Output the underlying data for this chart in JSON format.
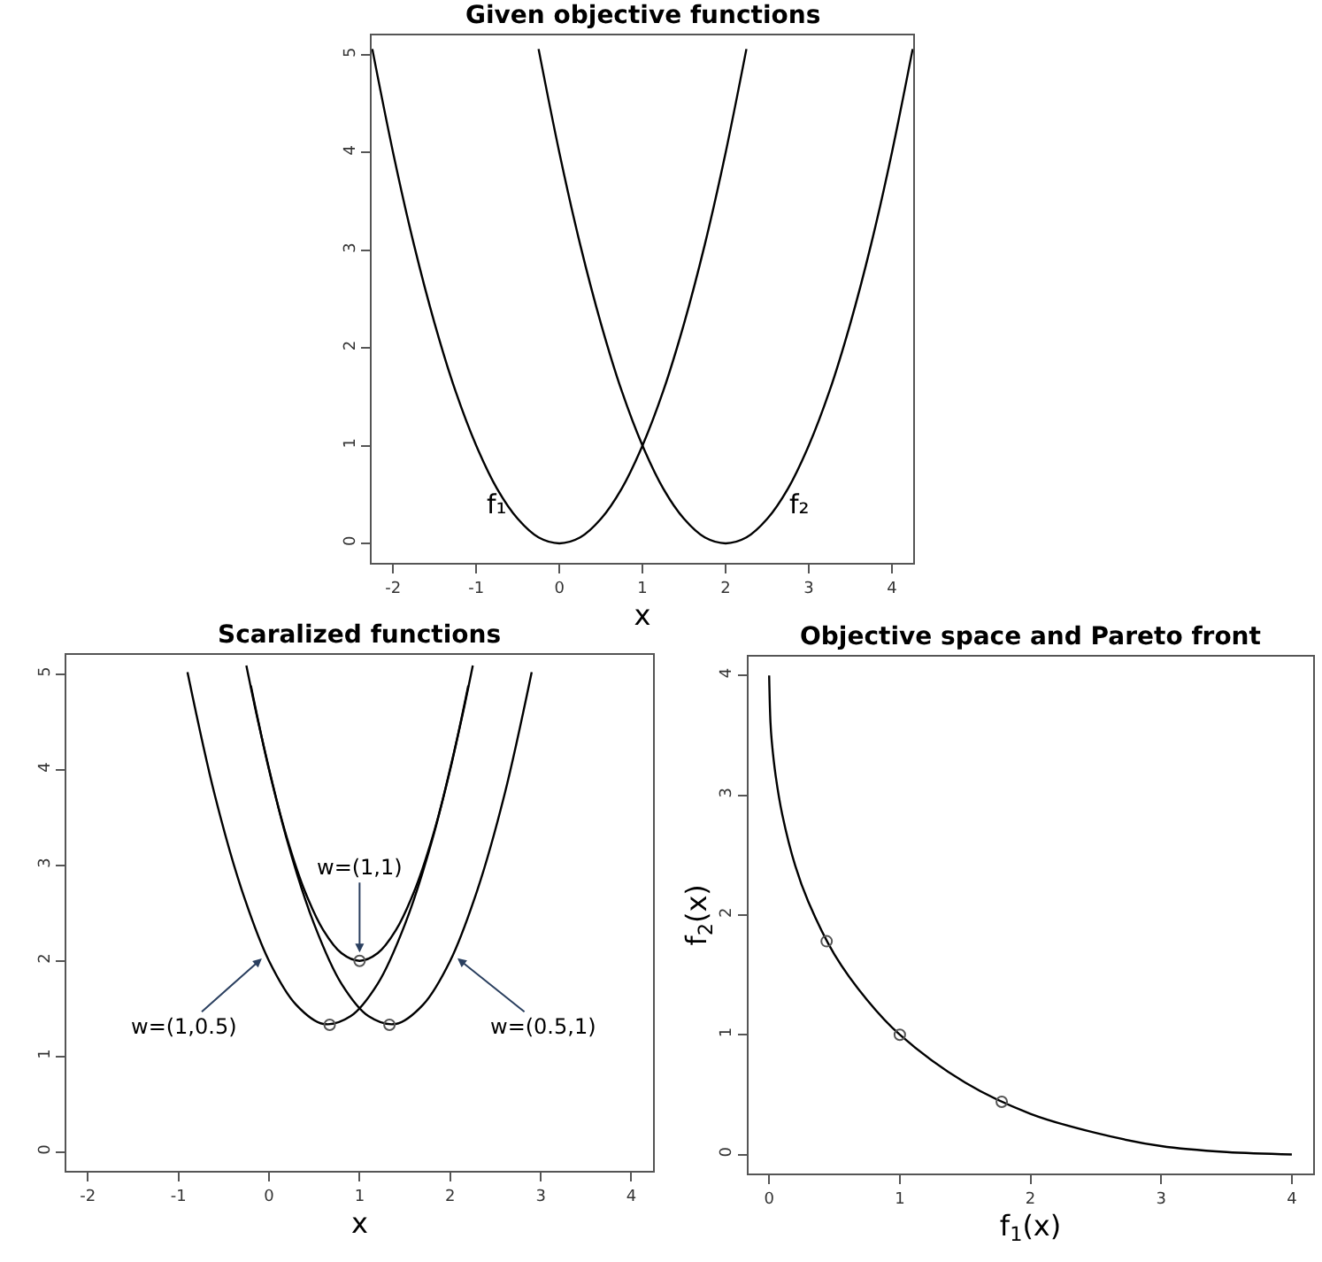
{
  "chart_data": [
    {
      "type": "line",
      "title": "Given objective functions",
      "xlabel": "x",
      "xlim": [
        -2.26,
        4.26
      ],
      "ylim": [
        -0.2,
        5.2
      ],
      "xticks": [
        -2,
        -1,
        0,
        1,
        2,
        3,
        4
      ],
      "yticks": [
        0,
        1,
        2,
        3,
        4,
        5
      ],
      "marker": "none",
      "series": [
        {
          "color": "#000000",
          "x": [
            -2.25,
            -2,
            -1.75,
            -1.5,
            -1.25,
            -1,
            -0.75,
            -0.5,
            -0.25,
            0,
            0.25,
            0.5,
            0.75,
            1,
            1.25,
            1.5,
            1.75,
            2,
            2.25
          ],
          "values": [
            5.06,
            4,
            3.06,
            2.25,
            1.56,
            1,
            0.56,
            0.25,
            0.06,
            0,
            0.06,
            0.25,
            0.56,
            1,
            1.56,
            2.25,
            3.06,
            4,
            5.06
          ]
        },
        {
          "color": "#000000",
          "x": [
            -0.25,
            0,
            0.25,
            0.5,
            0.75,
            1,
            1.25,
            1.5,
            1.75,
            2,
            2.25,
            2.5,
            2.75,
            3,
            3.25,
            3.5,
            3.75,
            4,
            4.25
          ],
          "values": [
            5.06,
            4,
            3.06,
            2.25,
            1.56,
            1,
            0.56,
            0.25,
            0.06,
            0,
            0.06,
            0.25,
            0.56,
            1,
            1.56,
            2.25,
            3.06,
            4,
            5.06
          ]
        }
      ],
      "annotations": [
        "f₁",
        "f₂"
      ]
    },
    {
      "type": "line",
      "title": "Scaralized functions",
      "xlabel": "x",
      "xlim": [
        -2.24,
        4.24
      ],
      "ylim": [
        -0.2,
        5.2
      ],
      "xticks": [
        -2,
        -1,
        0,
        1,
        2,
        3,
        4
      ],
      "yticks": [
        0,
        1,
        2,
        3,
        4,
        5
      ],
      "marker": "none",
      "series": [
        {
          "color": "#000000",
          "x": [
            -0.2,
            0,
            0.2,
            0.4,
            0.6,
            0.8,
            1,
            1.2,
            1.4,
            1.6,
            1.8,
            2,
            2.2
          ],
          "values": [
            4.88,
            4,
            3.28,
            2.72,
            2.32,
            2.08,
            2,
            2.08,
            2.32,
            2.72,
            3.28,
            4,
            4.88
          ]
        },
        {
          "color": "#000000",
          "x": [
            -0.9,
            -0.6,
            -0.3,
            0,
            0.3,
            0.6,
            0.9,
            1.2,
            1.5,
            1.8,
            2.1,
            2.25
          ],
          "values": [
            5.02,
            3.74,
            2.74,
            2,
            1.54,
            1.34,
            1.42,
            1.76,
            2.38,
            3.26,
            4.42,
            5.09
          ]
        },
        {
          "color": "#000000",
          "x": [
            -0.25,
            -0.1,
            0.2,
            0.5,
            0.8,
            1.1,
            1.4,
            1.7,
            2,
            2.3,
            2.6,
            2.9
          ],
          "values": [
            5.09,
            4.42,
            3.26,
            2.38,
            1.76,
            1.42,
            1.34,
            1.54,
            2,
            2.74,
            3.74,
            5.02
          ]
        },
        {
          "type": "scatter",
          "marker": "circle",
          "color": "#555555",
          "x": [
            1,
            0.67,
            1.33
          ],
          "values": [
            2,
            1.33,
            1.33
          ]
        }
      ],
      "annotations": [
        {
          "text": "w=(1,1)",
          "x": 1,
          "y": 2.05
        },
        {
          "text": "w=(1,0.5)",
          "x": -0.05,
          "y": 2.05
        },
        {
          "text": "w=(0.5,1)",
          "x": 2.05,
          "y": 2.05
        }
      ]
    },
    {
      "type": "line",
      "title": "Objective space and Pareto front",
      "xlabel": "f$_{1}$(x)",
      "ylabel": "f$_{2}$(x)",
      "xlim": [
        -0.16,
        4.16
      ],
      "ylim": [
        -0.16,
        4.16
      ],
      "xticks": [
        0,
        1,
        2,
        3,
        4
      ],
      "yticks": [
        0,
        1,
        2,
        3,
        4
      ],
      "marker": "none",
      "series": [
        {
          "color": "#000000",
          "x": [
            0,
            0.01,
            0.02,
            0.05,
            0.1,
            0.2,
            0.3,
            0.5,
            0.75,
            1,
            1.5,
            2,
            2.5,
            3,
            3.5,
            4
          ],
          "values": [
            4,
            3.61,
            3.45,
            3.16,
            2.84,
            2.41,
            2.11,
            1.67,
            1.29,
            1,
            0.6,
            0.34,
            0.18,
            0.07,
            0.02,
            0
          ]
        },
        {
          "type": "scatter",
          "marker": "circle",
          "color": "#555555",
          "x": [
            0.44,
            1,
            1.78
          ],
          "values": [
            1.78,
            1,
            0.44
          ]
        }
      ]
    }
  ]
}
